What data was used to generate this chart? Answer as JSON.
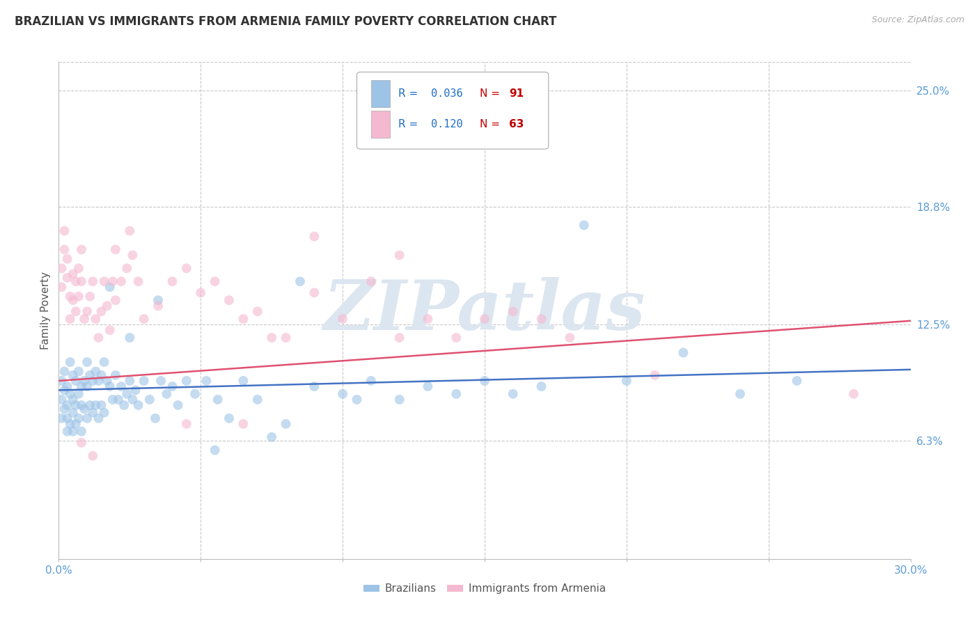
{
  "title": "BRAZILIAN VS IMMIGRANTS FROM ARMENIA FAMILY POVERTY CORRELATION CHART",
  "source_text": "Source: ZipAtlas.com",
  "ylabel": "Family Poverty",
  "xlim": [
    0.0,
    0.3
  ],
  "ylim": [
    0.0,
    0.265
  ],
  "xticks": [
    0.0,
    0.05,
    0.1,
    0.15,
    0.2,
    0.25,
    0.3
  ],
  "xticklabels": [
    "0.0%",
    "",
    "",
    "",
    "",
    "",
    "30.0%"
  ],
  "ytick_labels_right": [
    "25.0%",
    "18.8%",
    "12.5%",
    "6.3%"
  ],
  "ytick_vals_right": [
    0.25,
    0.188,
    0.125,
    0.063
  ],
  "background_color": "#ffffff",
  "grid_color": "#c8c8c8",
  "title_color": "#333333",
  "right_label_color": "#5b9bd5",
  "watermark_text": "ZIPatlas",
  "watermark_color": "#dce6f0",
  "series1_label": "Brazilians",
  "series1_color": "#9dc3e6",
  "series1_edge_color": "#9dc3e6",
  "series1_R": "0.036",
  "series1_N": "91",
  "series1_line_color": "#4472c4",
  "series2_label": "Immigrants from Armenia",
  "series2_color": "#f4b8d0",
  "series2_edge_color": "#f4b8d0",
  "series2_R": "0.120",
  "series2_N": "63",
  "series2_line_color": "#e05070",
  "legend_R_color": "#1f6ec4",
  "legend_N_color": "#c00000",
  "marker_size": 100,
  "marker_alpha": 0.6,
  "brazil_x": [
    0.001,
    0.001,
    0.001,
    0.002,
    0.002,
    0.002,
    0.003,
    0.003,
    0.003,
    0.003,
    0.004,
    0.004,
    0.004,
    0.005,
    0.005,
    0.005,
    0.005,
    0.006,
    0.006,
    0.006,
    0.007,
    0.007,
    0.007,
    0.008,
    0.008,
    0.008,
    0.009,
    0.009,
    0.01,
    0.01,
    0.01,
    0.011,
    0.011,
    0.012,
    0.012,
    0.013,
    0.013,
    0.014,
    0.014,
    0.015,
    0.015,
    0.016,
    0.016,
    0.017,
    0.018,
    0.019,
    0.02,
    0.021,
    0.022,
    0.023,
    0.024,
    0.025,
    0.026,
    0.027,
    0.028,
    0.03,
    0.032,
    0.034,
    0.036,
    0.038,
    0.04,
    0.042,
    0.045,
    0.048,
    0.052,
    0.056,
    0.06,
    0.065,
    0.07,
    0.075,
    0.08,
    0.09,
    0.1,
    0.11,
    0.12,
    0.13,
    0.14,
    0.15,
    0.16,
    0.17,
    0.185,
    0.2,
    0.22,
    0.24,
    0.26,
    0.018,
    0.025,
    0.035,
    0.055,
    0.085,
    0.105
  ],
  "brazil_y": [
    0.095,
    0.085,
    0.075,
    0.1,
    0.09,
    0.08,
    0.092,
    0.082,
    0.075,
    0.068,
    0.105,
    0.088,
    0.072,
    0.098,
    0.085,
    0.078,
    0.068,
    0.095,
    0.082,
    0.072,
    0.1,
    0.088,
    0.075,
    0.092,
    0.082,
    0.068,
    0.095,
    0.08,
    0.105,
    0.092,
    0.075,
    0.098,
    0.082,
    0.095,
    0.078,
    0.1,
    0.082,
    0.095,
    0.075,
    0.098,
    0.082,
    0.105,
    0.078,
    0.095,
    0.092,
    0.085,
    0.098,
    0.085,
    0.092,
    0.082,
    0.088,
    0.095,
    0.085,
    0.09,
    0.082,
    0.095,
    0.085,
    0.075,
    0.095,
    0.088,
    0.092,
    0.082,
    0.095,
    0.088,
    0.095,
    0.085,
    0.075,
    0.095,
    0.085,
    0.065,
    0.072,
    0.092,
    0.088,
    0.095,
    0.085,
    0.092,
    0.088,
    0.095,
    0.088,
    0.092,
    0.178,
    0.095,
    0.11,
    0.088,
    0.095,
    0.145,
    0.118,
    0.138,
    0.058,
    0.148,
    0.085
  ],
  "armenia_x": [
    0.001,
    0.001,
    0.002,
    0.002,
    0.003,
    0.003,
    0.004,
    0.004,
    0.005,
    0.005,
    0.006,
    0.006,
    0.007,
    0.007,
    0.008,
    0.008,
    0.009,
    0.01,
    0.011,
    0.012,
    0.013,
    0.014,
    0.015,
    0.016,
    0.017,
    0.018,
    0.019,
    0.02,
    0.022,
    0.024,
    0.026,
    0.028,
    0.03,
    0.035,
    0.04,
    0.045,
    0.05,
    0.055,
    0.06,
    0.065,
    0.07,
    0.075,
    0.08,
    0.09,
    0.1,
    0.11,
    0.12,
    0.13,
    0.14,
    0.15,
    0.16,
    0.17,
    0.18,
    0.21,
    0.28,
    0.025,
    0.045,
    0.065,
    0.09,
    0.12,
    0.008,
    0.012,
    0.02
  ],
  "armenia_y": [
    0.155,
    0.145,
    0.175,
    0.165,
    0.16,
    0.15,
    0.14,
    0.128,
    0.152,
    0.138,
    0.148,
    0.132,
    0.155,
    0.14,
    0.165,
    0.148,
    0.128,
    0.132,
    0.14,
    0.148,
    0.128,
    0.118,
    0.132,
    0.148,
    0.135,
    0.122,
    0.148,
    0.138,
    0.148,
    0.155,
    0.162,
    0.148,
    0.128,
    0.135,
    0.148,
    0.155,
    0.142,
    0.148,
    0.138,
    0.128,
    0.132,
    0.118,
    0.118,
    0.142,
    0.128,
    0.148,
    0.162,
    0.128,
    0.118,
    0.128,
    0.132,
    0.128,
    0.118,
    0.098,
    0.088,
    0.175,
    0.072,
    0.072,
    0.172,
    0.118,
    0.062,
    0.055,
    0.165
  ],
  "brazil_line_x": [
    0.0,
    0.3
  ],
  "brazil_line_y": [
    0.09,
    0.101
  ],
  "armenia_line_x": [
    0.0,
    0.3
  ],
  "armenia_line_y": [
    0.095,
    0.127
  ]
}
